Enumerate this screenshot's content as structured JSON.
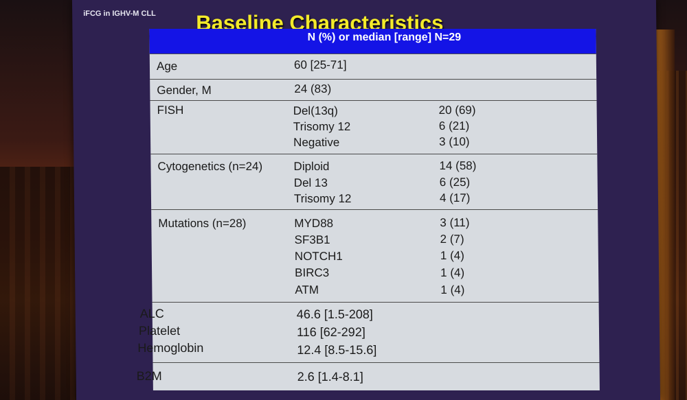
{
  "slide": {
    "tag": "iFCG in IGHV-M CLL",
    "title": "Baseline Characteristics",
    "header": "N (%) or median [range] N=29"
  },
  "rows": {
    "age": {
      "label": "Age",
      "value": "60 [25-71]"
    },
    "gender": {
      "label": "Gender, M",
      "value": "24 (83)"
    },
    "fish": {
      "label": "FISH",
      "items": [
        {
          "name": "Del(13q)",
          "value": "20 (69)"
        },
        {
          "name": "Trisomy 12",
          "value": "6 (21)"
        },
        {
          "name": "Negative",
          "value": "3 (10)"
        }
      ]
    },
    "cyto": {
      "label": "Cytogenetics (n=24)",
      "items": [
        {
          "name": "Diploid",
          "value": "14 (58)"
        },
        {
          "name": "Del 13",
          "value": "6 (25)"
        },
        {
          "name": "Trisomy 12",
          "value": "4 (17)"
        }
      ]
    },
    "mutations": {
      "label": "Mutations (n=28)",
      "items": [
        {
          "name": "MYD88",
          "value": "3 (11)"
        },
        {
          "name": "SF3B1",
          "value": "2 (7)"
        },
        {
          "name": "NOTCH1",
          "value": "1 (4)"
        },
        {
          "name": "BIRC3",
          "value": "1 (4)"
        },
        {
          "name": "ATM",
          "value": "1 (4)"
        }
      ]
    },
    "labs": [
      {
        "label": "ALC",
        "value": "46.6 [1.5-208]"
      },
      {
        "label": "Platelet",
        "value": "116 [62-292]"
      },
      {
        "label": "Hemoglobin",
        "value": "12.4 [8.5-15.6]"
      }
    ],
    "b2m": {
      "label": "B2M",
      "value": "2.6 [1.4-8.1]"
    }
  },
  "colors": {
    "title": "#f3ea2a",
    "header_bg": "#1414e6",
    "slide_bg": "#2e2150",
    "table_bg": "#d7dbe0"
  }
}
